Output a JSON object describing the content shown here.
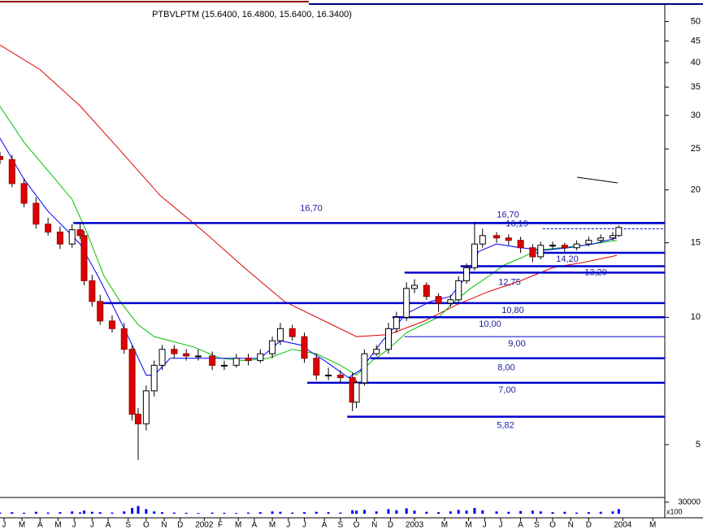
{
  "chart_data": {
    "type": "candlestick",
    "title": "PTBVLPTM (15.6400, 16.4800, 15.6400, 16.3400)",
    "log_y": true,
    "xlim": [
      0,
      166
    ],
    "ylim": [
      3.75,
      55
    ],
    "yticks": [
      5,
      10,
      15,
      20,
      25,
      30,
      35,
      40,
      45,
      50
    ],
    "xticks": [
      {
        "value": 1,
        "label": "J"
      },
      {
        "value": 5.5,
        "label": "M"
      },
      {
        "value": 10,
        "label": "A"
      },
      {
        "value": 14.5,
        "label": "M"
      },
      {
        "value": 18.5,
        "label": "J"
      },
      {
        "value": 23,
        "label": "J"
      },
      {
        "value": 27,
        "label": "A"
      },
      {
        "value": 32,
        "label": "S"
      },
      {
        "value": 36.5,
        "label": "O"
      },
      {
        "value": 41,
        "label": "N"
      },
      {
        "value": 45,
        "label": "D"
      },
      {
        "value": 51,
        "label": "2002"
      },
      {
        "value": 55,
        "label": "F"
      },
      {
        "value": 59.5,
        "label": "M"
      },
      {
        "value": 63.5,
        "label": "A"
      },
      {
        "value": 68,
        "label": "M"
      },
      {
        "value": 72,
        "label": "J"
      },
      {
        "value": 76,
        "label": "J"
      },
      {
        "value": 81,
        "label": "A"
      },
      {
        "value": 85,
        "label": "S"
      },
      {
        "value": 89,
        "label": "O"
      },
      {
        "value": 93.5,
        "label": "N"
      },
      {
        "value": 97.5,
        "label": "D"
      },
      {
        "value": 103.5,
        "label": "2003"
      },
      {
        "value": 111,
        "label": "M"
      },
      {
        "value": 117,
        "label": "M"
      },
      {
        "value": 121,
        "label": "J"
      },
      {
        "value": 125,
        "label": "J"
      },
      {
        "value": 130,
        "label": "A"
      },
      {
        "value": 134,
        "label": "S"
      },
      {
        "value": 138,
        "label": "O"
      },
      {
        "value": 142.5,
        "label": "N"
      },
      {
        "value": 147,
        "label": "D"
      },
      {
        "value": 155.5,
        "label": "2004"
      },
      {
        "value": 163,
        "label": "M"
      }
    ],
    "x": [
      0,
      3,
      6,
      9,
      12,
      15,
      18,
      20,
      21,
      23,
      25,
      28,
      31,
      33,
      34.5,
      36.5,
      38.5,
      40.5,
      43.5,
      46.5,
      49.5,
      53,
      56,
      59,
      62,
      65,
      68,
      70,
      73,
      76,
      79,
      82,
      85,
      88,
      89,
      91,
      94,
      97,
      99,
      101.5,
      103.5,
      106.5,
      109.5,
      112.5,
      114.5,
      116.5,
      118.5,
      120.5,
      124,
      127,
      130,
      133,
      135,
      138,
      141,
      144,
      147,
      150,
      153,
      154.5
    ],
    "open": [
      24.0,
      23.6,
      20.7,
      18.6,
      16.6,
      15.9,
      14.9,
      16.1,
      15.6,
      12.2,
      10.9,
      9.8,
      9.4,
      8.4,
      5.9,
      5.6,
      6.7,
      7.7,
      8.4,
      8.2,
      8.1,
      8.1,
      7.7,
      7.7,
      8.0,
      7.9,
      8.2,
      8.8,
      9.4,
      9.0,
      8.0,
      7.3,
      7.3,
      7.2,
      6.3,
      7.0,
      8.2,
      8.4,
      9.4,
      10.0,
      11.7,
      11.9,
      11.2,
      10.8,
      11.0,
      12.2,
      13.1,
      14.9,
      15.6,
      15.4,
      15.2,
      14.6,
      13.9,
      14.8,
      14.8,
      14.6,
      14.9,
      15.2,
      15.4,
      15.6
    ],
    "high": [
      24.6,
      24.2,
      21.3,
      19.2,
      17.2,
      16.4,
      16.6,
      16.7,
      16.0,
      12.6,
      11.3,
      10.1,
      9.7,
      8.6,
      6.1,
      6.9,
      7.9,
      8.6,
      8.6,
      8.4,
      8.4,
      8.3,
      7.9,
      8.2,
      8.2,
      8.4,
      9.0,
      9.7,
      9.6,
      9.2,
      8.2,
      7.6,
      7.5,
      7.4,
      7.1,
      8.4,
      8.6,
      9.7,
      10.3,
      12.1,
      12.3,
      12.1,
      11.4,
      11.3,
      12.5,
      13.4,
      16.8,
      16.2,
      15.9,
      15.7,
      15.5,
      14.9,
      15.1,
      15.1,
      15.0,
      15.2,
      15.5,
      15.7,
      15.9,
      16.5
    ],
    "low": [
      23.0,
      20.3,
      18.2,
      16.2,
      15.6,
      14.5,
      14.6,
      15.3,
      11.9,
      10.6,
      9.6,
      9.2,
      8.2,
      5.7,
      4.6,
      5.4,
      6.5,
      7.5,
      8.0,
      7.9,
      7.9,
      7.5,
      7.5,
      7.6,
      7.7,
      7.8,
      8.0,
      8.6,
      8.8,
      7.8,
      7.1,
      7.1,
      7.0,
      6.0,
      6.1,
      6.9,
      8.1,
      8.2,
      9.2,
      9.8,
      11.4,
      11.0,
      10.3,
      10.6,
      10.8,
      12.0,
      12.9,
      14.6,
      15.0,
      14.8,
      14.2,
      13.5,
      13.7,
      14.5,
      14.3,
      14.4,
      14.7,
      15.0,
      15.2,
      15.5
    ],
    "close": [
      23.6,
      20.7,
      18.6,
      16.6,
      15.9,
      14.9,
      16.1,
      15.6,
      12.2,
      10.9,
      9.8,
      9.4,
      8.4,
      5.9,
      5.6,
      6.7,
      7.7,
      8.4,
      8.2,
      8.1,
      8.1,
      7.7,
      7.7,
      8.0,
      7.9,
      8.2,
      8.8,
      9.4,
      9.0,
      8.0,
      7.3,
      7.3,
      7.2,
      6.3,
      7.0,
      8.2,
      8.4,
      9.4,
      10.0,
      11.7,
      11.9,
      11.2,
      10.8,
      11.0,
      12.2,
      13.1,
      14.9,
      15.6,
      15.4,
      15.2,
      14.6,
      13.9,
      14.8,
      14.8,
      14.6,
      14.9,
      15.2,
      15.4,
      15.6,
      16.3
    ],
    "up_color": "#ffffff",
    "down_color": "#e00000",
    "volume": {
      "values": [
        3000,
        4000,
        2500,
        5000,
        3000,
        4000,
        6000,
        3500,
        8000,
        5000,
        4000,
        3000,
        6000,
        15000,
        20000,
        12000,
        6000,
        4000,
        3000,
        2500,
        2000,
        3000,
        2500,
        2000,
        3000,
        4000,
        6000,
        5000,
        3000,
        4000,
        5000,
        4000,
        3000,
        9000,
        8000,
        10000,
        6000,
        12000,
        9000,
        14000,
        8000,
        5000,
        4000,
        6000,
        10000,
        8000,
        15000,
        9000,
        6000,
        5000,
        7000,
        8000,
        6000,
        4000,
        5000,
        3000,
        4000,
        5000,
        6000,
        12000
      ],
      "ylim": [
        0,
        40000
      ],
      "yticks": [
        30000
      ],
      "unit": "x100",
      "color": "#0000ff"
    },
    "moving_averages": [
      {
        "color": "#e00000",
        "x": [
          0,
          10,
          20,
          30,
          40,
          51,
          61,
          71,
          81,
          89,
          97,
          106,
          114,
          122,
          130,
          138,
          146,
          154
        ],
        "values": [
          44.0,
          38.5,
          31.6,
          24.8,
          19.4,
          15.9,
          13.1,
          10.9,
          9.8,
          9.0,
          9.1,
          9.8,
          10.7,
          11.5,
          12.2,
          13.1,
          13.5,
          14.0
        ]
      },
      {
        "color": "#00c000",
        "x": [
          0,
          6,
          12,
          18,
          22,
          26,
          30,
          34.5,
          38.5,
          42.5,
          48.5,
          55,
          61,
          67,
          73,
          79,
          85,
          89,
          93,
          97,
          101.5,
          105.5,
          109.5,
          113.5,
          117.5,
          122,
          126,
          130,
          134,
          140,
          146,
          154
        ],
        "values": [
          31.5,
          25.9,
          22.2,
          19.0,
          15.6,
          12.5,
          10.9,
          9.6,
          9.0,
          8.8,
          8.5,
          8.0,
          7.9,
          8.0,
          8.4,
          8.2,
          7.7,
          7.3,
          7.9,
          8.4,
          9.2,
          9.6,
          10.0,
          10.9,
          11.7,
          12.5,
          13.3,
          13.8,
          14.4,
          14.6,
          14.8,
          15.2
        ]
      },
      {
        "color": "#0000ff",
        "x": [
          0,
          6,
          12,
          16,
          20,
          24.5,
          28.5,
          32.5,
          36.5,
          38.5,
          42.5,
          48.5,
          57,
          65,
          70,
          75,
          81,
          87,
          90,
          95.5,
          101.5,
          107.5,
          112.5,
          116.5,
          119.5,
          124,
          130,
          136,
          142,
          148,
          154
        ],
        "values": [
          26.5,
          21.2,
          17.8,
          16.3,
          14.9,
          12.5,
          10.5,
          8.8,
          7.3,
          7.3,
          8.0,
          8.0,
          8.0,
          8.0,
          8.8,
          8.6,
          7.9,
          7.2,
          7.5,
          8.8,
          10.2,
          10.9,
          11.2,
          12.5,
          14.3,
          14.9,
          14.6,
          14.4,
          14.6,
          14.9,
          15.4
        ]
      }
    ],
    "levels": {
      "color": "#0000cc",
      "values": [
        16.7,
        16.7,
        16.19,
        14.2,
        13.2,
        12.75,
        10.8,
        10.0,
        9.0,
        8.0,
        7.0,
        5.82
      ],
      "value_labels": [
        "16,70",
        "16,70",
        "16,19",
        "14,20",
        "13,20",
        "12,75",
        "10,80",
        "10,00",
        "9,00",
        "8,00",
        "7,00",
        "5,82"
      ],
      "start_x": [
        18.3,
        118.5,
        135.5,
        134,
        115,
        101,
        25.4,
        98,
        101,
        92.5,
        76.7,
        86.7
      ]
    }
  }
}
